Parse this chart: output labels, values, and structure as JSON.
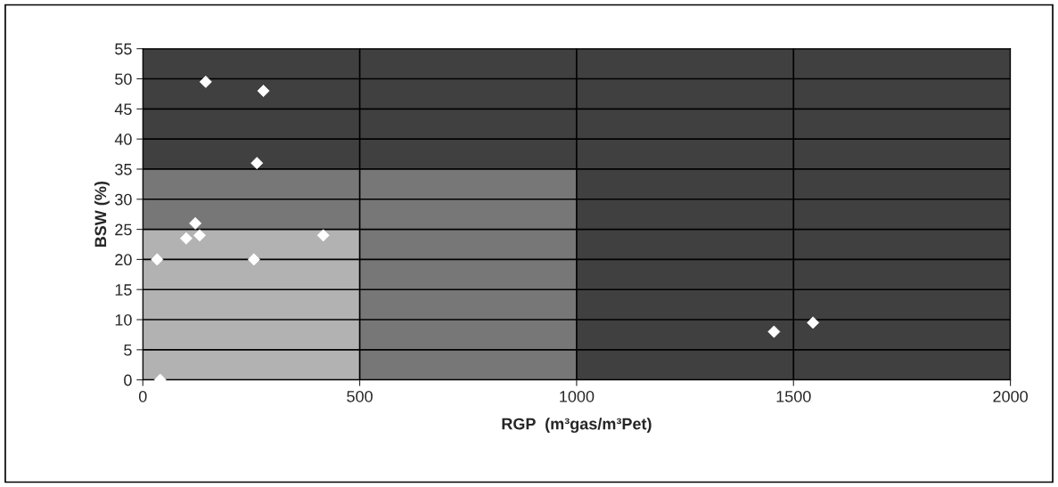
{
  "chart_data": {
    "type": "scatter",
    "xlabel": "RGP  (m³gas/m³Pet)",
    "ylabel": "BSW (%)",
    "xlim": [
      0,
      2000
    ],
    "xticks": [
      0,
      500,
      1000,
      1500,
      2000
    ],
    "ylim": [
      0,
      55
    ],
    "yticks": [
      0,
      5,
      10,
      15,
      20,
      25,
      30,
      35,
      40,
      45,
      50,
      55
    ],
    "grid": true,
    "stacked": true,
    "series": [
      {
        "type": "area",
        "color": "#b2b2b2",
        "x": [
          0,
          500,
          500,
          1000,
          1000,
          2000
        ],
        "values": [
          25,
          25,
          0,
          0,
          0,
          0
        ]
      },
      {
        "type": "area",
        "color": "#777777",
        "x": [
          0,
          500,
          500,
          1000,
          1000,
          2000
        ],
        "values": [
          10,
          10,
          35,
          35,
          0,
          0
        ]
      },
      {
        "type": "area",
        "color": "#404040",
        "x": [
          0,
          500,
          500,
          1000,
          1000,
          2000
        ],
        "values": [
          20,
          20,
          20,
          20,
          55,
          55
        ]
      },
      {
        "color": "#ffffff",
        "marker": "diamond",
        "x": [
          145,
          278,
          263,
          121,
          100,
          131,
          416,
          33,
          256,
          40,
          1455,
          1545
        ],
        "values": [
          49.5,
          48,
          36,
          26,
          23.5,
          24,
          24,
          20,
          20,
          0,
          8,
          9.5
        ]
      }
    ]
  }
}
